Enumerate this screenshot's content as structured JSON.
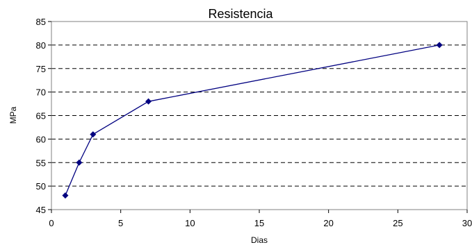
{
  "chart_data": {
    "type": "line",
    "title": "Resistencia",
    "xlabel": "Dias",
    "ylabel": "MPa",
    "xlim": [
      0,
      30
    ],
    "ylim": [
      45,
      85
    ],
    "xticks": [
      0,
      5,
      10,
      15,
      20,
      25,
      30
    ],
    "yticks": [
      45,
      50,
      55,
      60,
      65,
      70,
      75,
      80,
      85
    ],
    "grid": "horizontal-dashed",
    "legend": "none",
    "series": [
      {
        "color": "#000080",
        "points": [
          {
            "x": 1,
            "y": 48
          },
          {
            "x": 2,
            "y": 55
          },
          {
            "x": 3,
            "y": 61
          },
          {
            "x": 7,
            "y": 68
          },
          {
            "x": 28,
            "y": 80
          }
        ]
      }
    ]
  }
}
